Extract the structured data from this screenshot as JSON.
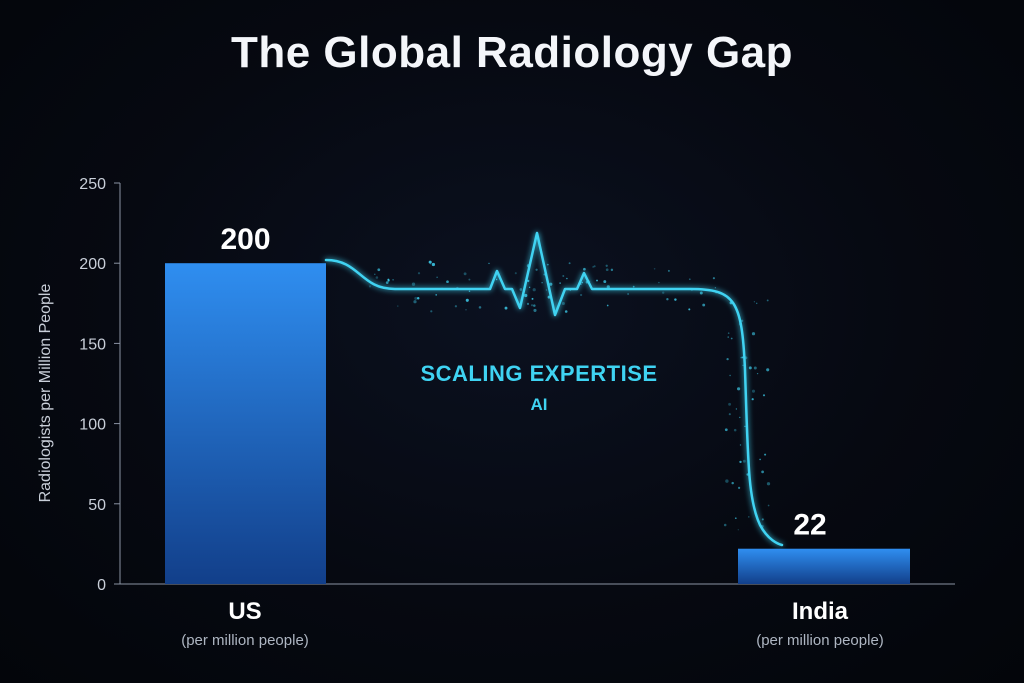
{
  "chart_data": {
    "type": "bar",
    "title": "The Global Radiology Gap",
    "ylabel": "Radiologists per Million People",
    "xlabel": "",
    "ylim": [
      0,
      250
    ],
    "yticks": [
      0,
      50,
      100,
      150,
      200,
      250
    ],
    "categories": [
      "US",
      "India"
    ],
    "category_sublabels": [
      "(per million people)",
      "(per million people)"
    ],
    "values": [
      200,
      22
    ],
    "value_labels": [
      "200",
      "22"
    ],
    "grid": false,
    "legend": "none",
    "annotation": {
      "main": "SCALING EXPERTISE",
      "sub": "AI"
    },
    "colors": {
      "bar_top": "#2f8ef0",
      "bar_bottom": "#123f8a",
      "accent": "#3fd3f2",
      "background": "#05070c"
    }
  }
}
